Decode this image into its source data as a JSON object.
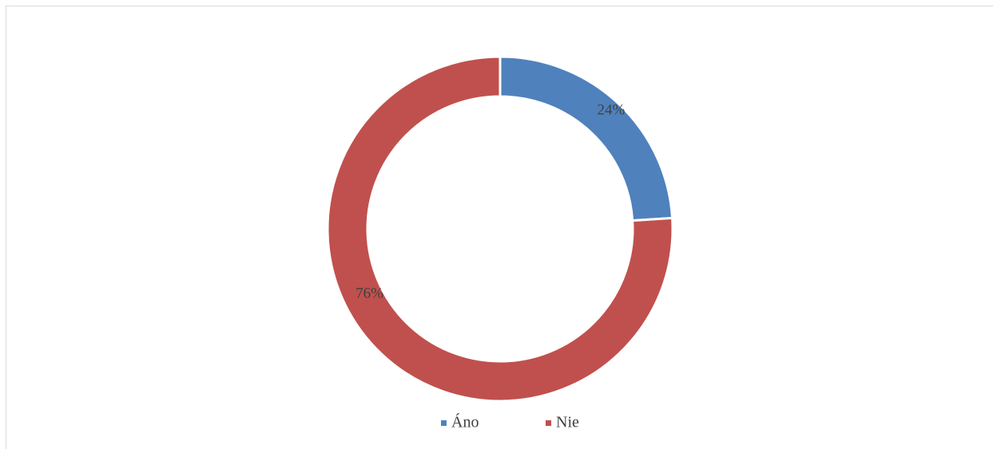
{
  "chart_data": {
    "type": "pie",
    "subtype": "doughnut",
    "categories": [
      "Áno",
      "Nie"
    ],
    "values": [
      24,
      76
    ],
    "value_labels": [
      "24%",
      "76%"
    ],
    "colors": [
      "#4f81bd",
      "#c0504d"
    ],
    "legend_position": "bottom",
    "title": "",
    "grid": false
  }
}
